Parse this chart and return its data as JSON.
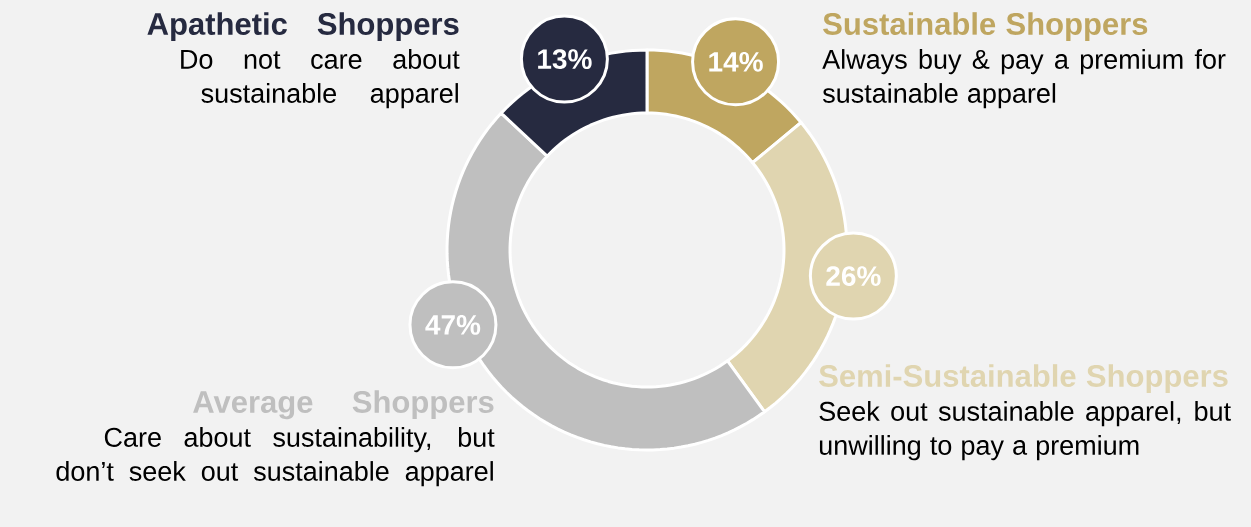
{
  "chart_data": {
    "type": "donut",
    "categories": [
      "Sustainable Shoppers",
      "Semi-Sustainable Shoppers",
      "Average Shoppers",
      "Apathetic Shoppers"
    ],
    "values": [
      14,
      26,
      47,
      13
    ],
    "value_labels": [
      "14%",
      "26%",
      "47%",
      "13%"
    ],
    "colors": [
      "#bfa660",
      "#e0d5b0",
      "#bfbfbf",
      "#262a40"
    ],
    "annotations": [
      "Always buy & pay a premium for sustainable apparel",
      "Seek out sustainable apparel, but unwilling to pay a premium",
      "Care about sustainability, but don’t seek out sustainable apparel",
      "Do not care about sustainable apparel"
    ]
  }
}
